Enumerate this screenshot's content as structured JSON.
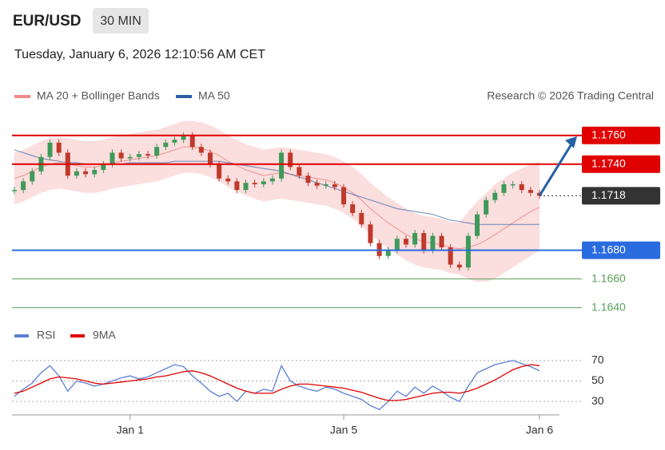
{
  "header": {
    "symbol": "EUR/USD",
    "interval": "30 MIN",
    "timestamp": "Tuesday, January 6, 2026 12:10:56 AM CET"
  },
  "chart_data": [
    {
      "type": "candlestick",
      "credit": "Research © 2026 Trading Central",
      "up_color": "#3f9a5a",
      "down_color": "#c0392b",
      "close": [
        1.1722,
        1.1728,
        1.1735,
        1.1745,
        1.1755,
        1.1748,
        1.1732,
        1.1735,
        1.1733,
        1.1736,
        1.174,
        1.1748,
        1.1744,
        1.1745,
        1.1747,
        1.1746,
        1.1752,
        1.1755,
        1.1757,
        1.176,
        1.1752,
        1.1748,
        1.174,
        1.173,
        1.1728,
        1.1722,
        1.1727,
        1.1726,
        1.1728,
        1.173,
        1.1748,
        1.1738,
        1.1732,
        1.1727,
        1.1725,
        1.1726,
        1.1724,
        1.1712,
        1.1706,
        1.1698,
        1.1685,
        1.1676,
        1.168,
        1.1688,
        1.1684,
        1.1692,
        1.168,
        1.169,
        1.1682,
        1.167,
        1.1668,
        1.169,
        1.1705,
        1.1715,
        1.172,
        1.1726,
        1.1726,
        1.1722,
        1.172,
        1.1718
      ],
      "series": [
        {
          "name": "MA 20 + Bollinger Bands",
          "color": "#f08a8a",
          "values": [
            1.173,
            1.1732,
            1.1735,
            1.1738,
            1.174,
            1.1741,
            1.174,
            1.1739,
            1.1738,
            1.1738,
            1.1739,
            1.1741,
            1.1742,
            1.1743,
            1.1744,
            1.1745,
            1.1746,
            1.1748,
            1.175,
            1.1752,
            1.1752,
            1.1751,
            1.1749,
            1.1746,
            1.1742,
            1.1739,
            1.1736,
            1.1734,
            1.1732,
            1.1733,
            1.1734,
            1.1733,
            1.1732,
            1.1731,
            1.173,
            1.1729,
            1.1727,
            1.1724,
            1.172,
            1.1715,
            1.1709,
            1.1704,
            1.1699,
            1.1695,
            1.1691,
            1.1688,
            1.1686,
            1.1685,
            1.1684,
            1.1682,
            1.1681,
            1.1682,
            1.1684,
            1.1687,
            1.1691,
            1.1695,
            1.1699,
            1.1703,
            1.1707,
            1.171
          ],
          "upper": [
            1.1748,
            1.175,
            1.1753,
            1.1756,
            1.1758,
            1.1759,
            1.1758,
            1.1757,
            1.1756,
            1.1756,
            1.1757,
            1.1759,
            1.176,
            1.1761,
            1.1762,
            1.1763,
            1.1764,
            1.1766,
            1.1768,
            1.177,
            1.177,
            1.1769,
            1.1767,
            1.1764,
            1.176,
            1.1757,
            1.1754,
            1.1752,
            1.175,
            1.1751,
            1.1752,
            1.1751,
            1.175,
            1.1749,
            1.1748,
            1.1747,
            1.1745,
            1.1742,
            1.1738,
            1.1733,
            1.1727,
            1.1722,
            1.1717,
            1.1713,
            1.1709,
            1.1706,
            1.1704,
            1.1703,
            1.1702,
            1.17,
            1.1699,
            1.1707,
            1.1714,
            1.172,
            1.1726,
            1.173,
            1.1734,
            1.1737,
            1.174,
            1.1742
          ],
          "lower": [
            1.1712,
            1.1714,
            1.1717,
            1.172,
            1.1722,
            1.1723,
            1.1722,
            1.1721,
            1.172,
            1.172,
            1.1721,
            1.1723,
            1.1724,
            1.1725,
            1.1726,
            1.1727,
            1.1728,
            1.173,
            1.1732,
            1.1734,
            1.1734,
            1.1733,
            1.1731,
            1.1728,
            1.1724,
            1.1721,
            1.1718,
            1.1716,
            1.1714,
            1.1715,
            1.1716,
            1.1715,
            1.1714,
            1.1713,
            1.1712,
            1.1711,
            1.1709,
            1.1706,
            1.1702,
            1.1697,
            1.1691,
            1.1686,
            1.1681,
            1.1677,
            1.1673,
            1.167,
            1.1668,
            1.1667,
            1.1666,
            1.1664,
            1.1663,
            1.166,
            1.1658,
            1.1658,
            1.166,
            1.1664,
            1.1668,
            1.1672,
            1.1676,
            1.168
          ]
        },
        {
          "name": "MA 50",
          "color": "#2b5ea7",
          "values": [
            1.175,
            1.1748,
            1.1746,
            1.1744,
            1.1743,
            1.1742,
            1.1741,
            1.1741,
            1.174,
            1.174,
            1.174,
            1.174,
            1.174,
            1.1741,
            1.1741,
            1.1741,
            1.1741,
            1.1741,
            1.1742,
            1.1742,
            1.1742,
            1.1742,
            1.1742,
            1.1742,
            1.1741,
            1.174,
            1.1739,
            1.1738,
            1.1737,
            1.1736,
            1.1735,
            1.1733,
            1.1731,
            1.1729,
            1.1727,
            1.1725,
            1.1723,
            1.1721,
            1.1719,
            1.1717,
            1.1715,
            1.1713,
            1.1711,
            1.1709,
            1.1708,
            1.1707,
            1.1706,
            1.1705,
            1.1703,
            1.1701,
            1.17,
            1.1699,
            1.1698,
            1.1698,
            1.1698,
            1.1698,
            1.1698,
            1.1698,
            1.1698,
            1.1698
          ]
        }
      ],
      "levels": [
        {
          "value": 1.176,
          "label": "1.1760",
          "color": "#e00000",
          "style": "solid",
          "label_box": true
        },
        {
          "value": 1.174,
          "label": "1.1740",
          "color": "#e00000",
          "style": "solid",
          "label_box": true
        },
        {
          "value": 1.1718,
          "label": "1.1718",
          "color": "#333333",
          "style": "dotted",
          "label_box": true
        },
        {
          "value": 1.168,
          "label": "1.1680",
          "color": "#2a6be0",
          "style": "solid",
          "label_box": true
        },
        {
          "value": 1.166,
          "label": "1.1660",
          "color": "#5aa05a",
          "style": "solid",
          "label_box": false
        },
        {
          "value": 1.164,
          "label": "1.1640",
          "color": "#5aa05a",
          "style": "solid",
          "label_box": false
        }
      ],
      "ylim": [
        1.1632,
        1.1771
      ]
    },
    {
      "type": "line",
      "series": [
        {
          "name": "RSI",
          "color": "#5b7fd6",
          "values": [
            35,
            42,
            48,
            58,
            65,
            55,
            40,
            50,
            48,
            45,
            47,
            50,
            53,
            55,
            52,
            54,
            58,
            62,
            66,
            64,
            55,
            48,
            40,
            35,
            38,
            30,
            40,
            38,
            42,
            40,
            65,
            50,
            45,
            42,
            40,
            44,
            42,
            38,
            35,
            32,
            26,
            22,
            30,
            40,
            35,
            44,
            38,
            45,
            40,
            34,
            30,
            45,
            58,
            62,
            66,
            68,
            70,
            67,
            64,
            60
          ]
        },
        {
          "name": "9MA",
          "color": "#e00000",
          "values": [
            38,
            40,
            44,
            48,
            52,
            54,
            53,
            52,
            50,
            48,
            47,
            48,
            49,
            50,
            51,
            52,
            54,
            55,
            57,
            59,
            60,
            58,
            55,
            51,
            47,
            43,
            40,
            38,
            38,
            38,
            42,
            45,
            47,
            47,
            46,
            45,
            44,
            43,
            41,
            39,
            36,
            33,
            31,
            31,
            32,
            34,
            36,
            38,
            39,
            39,
            38,
            40,
            43,
            47,
            51,
            56,
            61,
            64,
            66,
            65
          ]
        }
      ],
      "ylim": [
        20,
        80
      ],
      "yticks": [
        30,
        50,
        70
      ],
      "xlim": [
        0,
        59
      ],
      "xticks": [
        {
          "value": 13,
          "label": "Jan 1"
        },
        {
          "value": 37,
          "label": "Jan 5"
        },
        {
          "value": 59,
          "label": "Jan 6"
        }
      ]
    }
  ]
}
